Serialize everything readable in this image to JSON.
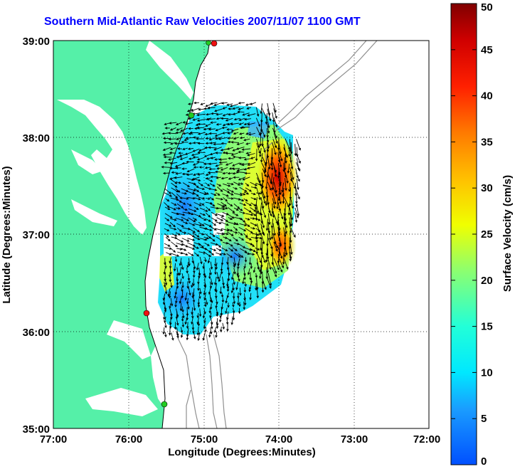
{
  "title": "Southern Mid-Atlantic Raw Velocities 2007/11/07 1100 GMT",
  "xlabel": "Longitude (Degrees:Minutes)",
  "ylabel": "Latitude (Degrees:Minutes)",
  "x_ticks": [
    "77:00",
    "76:00",
    "75:00",
    "74:00",
    "73:00",
    "72:00"
  ],
  "y_ticks": [
    "39:00",
    "38:00",
    "37:00",
    "36:00",
    "35:00"
  ],
  "colorbar": {
    "label": "Surface Velocity (cm/s)",
    "ticks": [
      "50",
      "45",
      "40",
      "35",
      "30",
      "25",
      "20",
      "15",
      "10",
      "5",
      "0"
    ],
    "range": [
      0,
      50
    ]
  },
  "colors": {
    "land": "#55f0a8",
    "water": "#ffffff",
    "bathymetry": "#909090",
    "grid": "#000000",
    "title": "#0000ff",
    "station_green": "#22cc22",
    "station_red": "#ee1111"
  },
  "stations": [
    {
      "type": "red",
      "lon": -74.85,
      "lat": 38.95
    },
    {
      "type": "green",
      "lon": -74.95,
      "lat": 38.93
    },
    {
      "type": "green",
      "lon": -75.1,
      "lat": 38.23
    },
    {
      "type": "red",
      "lon": -75.75,
      "lat": 36.2
    },
    {
      "type": "green",
      "lon": -75.5,
      "lat": 35.25
    }
  ],
  "icons": {
    "station_marker": "circle-marker-icon",
    "vector": "arrow-icon"
  }
}
